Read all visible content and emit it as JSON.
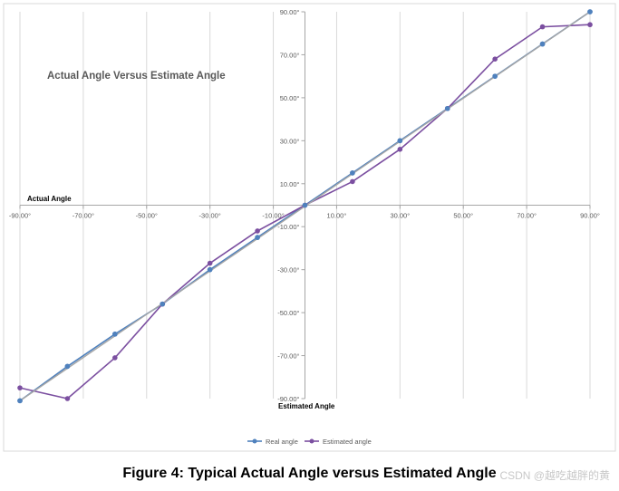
{
  "chart_data": {
    "type": "line",
    "title": "Actual Angle Versus Estimate Angle",
    "xlabel": "Estimated Angle",
    "ylabel": "Actual Angle",
    "xlim": [
      -90,
      90
    ],
    "ylim": [
      -90,
      90
    ],
    "x_tick_labels": [
      "-90.00°",
      "-70.00°",
      "-50.00°",
      "-30.00°",
      "-10.00°",
      "10.00°",
      "30.00°",
      "50.00°",
      "70.00°",
      "90.00°"
    ],
    "y_tick_labels": [
      "90.00°",
      "70.00°",
      "50.00°",
      "30.00°",
      "10.00°",
      "-10.00°",
      "-30.00°",
      "-50.00°",
      "-70.00°",
      "-90.00°"
    ],
    "x_tick_values": [
      -90,
      -70,
      -50,
      -30,
      -10,
      10,
      30,
      50,
      70,
      90
    ],
    "y_tick_values": [
      90,
      70,
      50,
      30,
      10,
      -10,
      -30,
      -50,
      -70,
      -90
    ],
    "grid": "vertical",
    "legend_position": "bottom",
    "series": [
      {
        "name": "Real angle",
        "color": "#4f81bd",
        "points": [
          [
            -90,
            -91
          ],
          [
            -75,
            -75
          ],
          [
            -60,
            -60
          ],
          [
            -45,
            -46
          ],
          [
            -30,
            -30
          ],
          [
            -15,
            -15
          ],
          [
            0,
            0
          ],
          [
            15,
            15
          ],
          [
            30,
            30
          ],
          [
            45,
            45
          ],
          [
            60,
            60
          ],
          [
            75,
            75
          ],
          [
            90,
            90
          ]
        ]
      },
      {
        "name": "Estimated angle",
        "color": "#7b4fa0",
        "points": [
          [
            -90,
            -85
          ],
          [
            -75,
            -90
          ],
          [
            -60,
            -71
          ],
          [
            -45,
            -46
          ],
          [
            -30,
            -27
          ],
          [
            -15,
            -12
          ],
          [
            0,
            0
          ],
          [
            15,
            11
          ],
          [
            30,
            26
          ],
          [
            45,
            45
          ],
          [
            60,
            68
          ],
          [
            75,
            83
          ],
          [
            90,
            84
          ]
        ]
      }
    ],
    "trend_line_color": "#a6a6a6"
  },
  "caption": "Figure 4: Typical Actual Angle versus Estimated Angle",
  "watermark": "CSDN @越吃越胖的黄"
}
